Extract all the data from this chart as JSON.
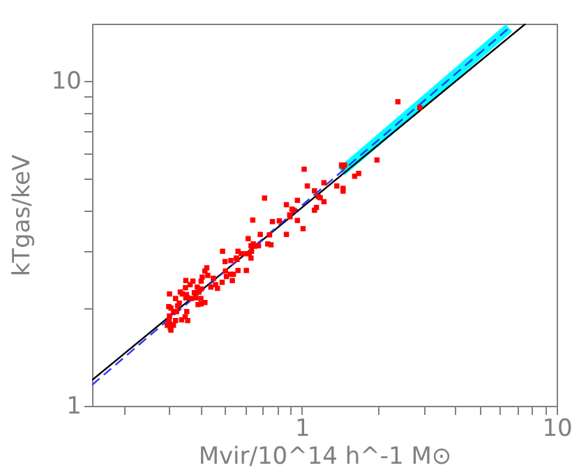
{
  "chart_data": {
    "type": "scatter",
    "xlabel": "Mvir/10^14 h^-1 M⊙",
    "ylabel": "kTgas/keV",
    "log": "xy",
    "grid": false,
    "marker": "square",
    "xlim": [
      0.15,
      10
    ],
    "ylim": [
      1,
      15
    ],
    "xticks": [
      {
        "value": 0.2,
        "label": null
      },
      {
        "value": 0.3,
        "label": null
      },
      {
        "value": 0.4,
        "label": null
      },
      {
        "value": 0.5,
        "label": null
      },
      {
        "value": 0.6,
        "label": null
      },
      {
        "value": 0.7,
        "label": null
      },
      {
        "value": 0.8,
        "label": null
      },
      {
        "value": 0.9,
        "label": null
      },
      1,
      {
        "value": 2,
        "label": null
      },
      {
        "value": 3,
        "label": null
      },
      {
        "value": 4,
        "label": null
      },
      {
        "value": 5,
        "label": null
      },
      {
        "value": 6,
        "label": null
      },
      {
        "value": 7,
        "label": null
      },
      {
        "value": 8,
        "label": null
      },
      {
        "value": 9,
        "label": null
      },
      10
    ],
    "yticks": [
      1,
      {
        "value": 2,
        "label": null
      },
      {
        "value": 3,
        "label": null
      },
      {
        "value": 4,
        "label": null
      },
      {
        "value": 5,
        "label": null
      },
      {
        "value": 6,
        "label": null
      },
      {
        "value": 7,
        "label": null
      },
      {
        "value": 8,
        "label": null
      },
      {
        "value": 9,
        "label": null
      },
      10
    ],
    "series": [
      {
        "color": "#ff0000",
        "x": [
          2.38,
          2.9,
          1.97,
          1.43,
          1.47,
          1.45,
          1.67,
          1.61,
          1.02,
          1.22,
          1.05,
          1.37,
          1.45,
          1.45,
          1.12,
          1.16,
          1.18,
          1.22,
          1.14,
          1.12,
          0.713,
          0.869,
          0.96,
          0.914,
          0.929,
          0.895,
          0.898,
          0.96,
          1.01,
          0.815,
          0.766,
          0.641,
          0.869,
          0.746,
          0.756,
          0.734,
          0.615,
          0.686,
          0.653,
          0.631,
          0.644,
          0.634,
          0.675,
          0.561,
          0.578,
          0.605,
          0.552,
          0.631,
          0.621,
          0.488,
          0.499,
          0.526,
          0.556,
          0.605,
          0.561,
          0.538,
          0.533,
          0.525,
          0.501,
          0.505,
          0.486,
          0.458,
          0.466,
          0.449,
          0.439,
          0.427,
          0.416,
          0.423,
          0.406,
          0.402,
          0.402,
          0.394,
          0.388,
          0.378,
          0.35,
          0.373,
          0.364,
          0.352,
          0.355,
          0.349,
          0.402,
          0.401,
          0.391,
          0.416,
          0.383,
          0.368,
          0.35,
          0.339,
          0.302,
          0.333,
          0.319,
          0.325,
          0.33,
          0.322,
          0.313,
          0.306,
          0.3,
          0.302,
          0.301,
          0.309,
          0.319,
          0.337,
          0.348,
          0.356,
          0.353,
          0.304,
          0.306,
          0.313,
          0.296
        ],
        "values": [
          8.63,
          8.28,
          5.71,
          5.51,
          5.51,
          5.45,
          5.19,
          5.09,
          5.35,
          4.86,
          4.75,
          4.75,
          4.67,
          4.58,
          4.59,
          4.4,
          4.37,
          4.25,
          4.08,
          4.0,
          4.36,
          4.16,
          4.29,
          4.03,
          4.0,
          3.87,
          3.82,
          3.72,
          3.51,
          3.71,
          3.69,
          3.73,
          3.37,
          3.36,
          3.13,
          3.15,
          3.27,
          3.37,
          3.1,
          3.11,
          3.15,
          2.99,
          3.11,
          2.99,
          2.94,
          2.94,
          2.85,
          2.85,
          2.94,
          2.99,
          2.78,
          2.8,
          2.82,
          2.61,
          2.61,
          2.54,
          2.43,
          2.54,
          2.6,
          2.5,
          2.4,
          2.36,
          2.3,
          2.47,
          2.32,
          2.52,
          2.6,
          2.66,
          2.49,
          2.42,
          2.29,
          2.24,
          2.32,
          2.23,
          2.43,
          2.42,
          2.36,
          2.2,
          2.15,
          2.31,
          2.06,
          2.14,
          2.05,
          2.08,
          2.15,
          2.14,
          2.15,
          2.21,
          2.21,
          2.24,
          2.14,
          2.03,
          2.07,
          1.95,
          1.95,
          2.0,
          2.02,
          1.89,
          1.83,
          1.78,
          1.83,
          1.84,
          1.88,
          1.83,
          1.95,
          1.74,
          1.71,
          1.77,
          1.77
        ]
      },
      {
        "type": "line",
        "color": "#00ffff",
        "marker": "none",
        "line_style": "solid",
        "x": [
          1.43,
          6.5
        ],
        "values": [
          5.26,
          14.55
        ]
      },
      {
        "type": "line",
        "color": "#000000",
        "marker": "none",
        "line_style": "solid",
        "x": [
          0.15,
          7.55
        ],
        "values": [
          1.2,
          15
        ]
      },
      {
        "type": "line",
        "color": "#3030ff",
        "marker": "none",
        "line_style": "dashed",
        "x": [
          0.15,
          1.43,
          6.5
        ],
        "values": [
          1.16,
          5.26,
          14.55
        ]
      }
    ]
  }
}
